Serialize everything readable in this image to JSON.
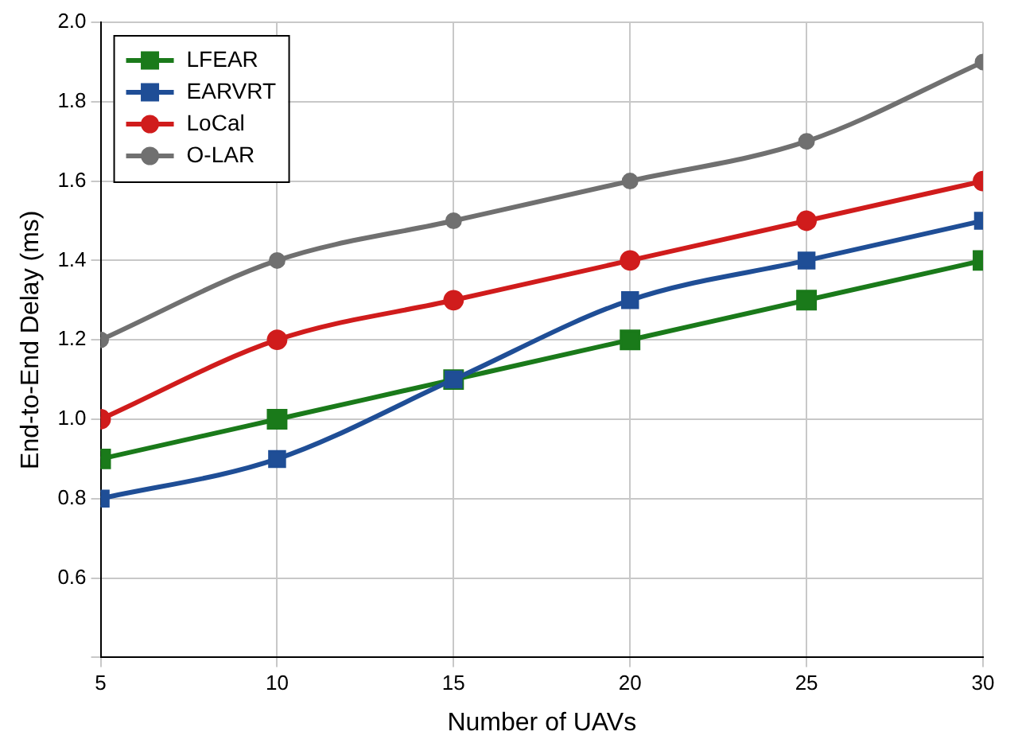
{
  "chart_data": {
    "type": "line",
    "xlabel": "Number of UAVs",
    "ylabel": "End-to-End Delay (ms)",
    "x": [
      5,
      10,
      15,
      20,
      25,
      30
    ],
    "xlim": [
      5,
      30
    ],
    "xticks": [
      5,
      10,
      15,
      20,
      25,
      30
    ],
    "ylim": [
      0.4,
      2.0
    ],
    "yticks": [
      {
        "value": 0.4,
        "label": null
      },
      0.6,
      0.8,
      {
        "value": 1,
        "label": "1.0"
      },
      1.2,
      1.4,
      1.6,
      1.8,
      {
        "value": 2,
        "label": "2.0"
      }
    ],
    "grid": true,
    "legend": "top left",
    "line_style": "solid",
    "series": [
      {
        "name": "LFEAR",
        "color": "#1a7a1a",
        "marker": "square",
        "values": [
          0.9,
          1.0,
          1.1,
          1.2,
          1.3,
          1.4
        ]
      },
      {
        "name": "EARVRT",
        "color": "#1f4e96",
        "marker": "square",
        "values": [
          0.8,
          0.9,
          1.1,
          1.3,
          1.4,
          1.5
        ]
      },
      {
        "name": "LoCal",
        "color": "#d01c1c",
        "marker": "circle",
        "values": [
          1.0,
          1.2,
          1.3,
          1.4,
          1.5,
          1.6
        ]
      },
      {
        "name": "O-LAR",
        "color": "#707070",
        "marker": "circle",
        "values": [
          1.2,
          1.4,
          1.5,
          1.6,
          1.7,
          1.9
        ]
      }
    ]
  }
}
